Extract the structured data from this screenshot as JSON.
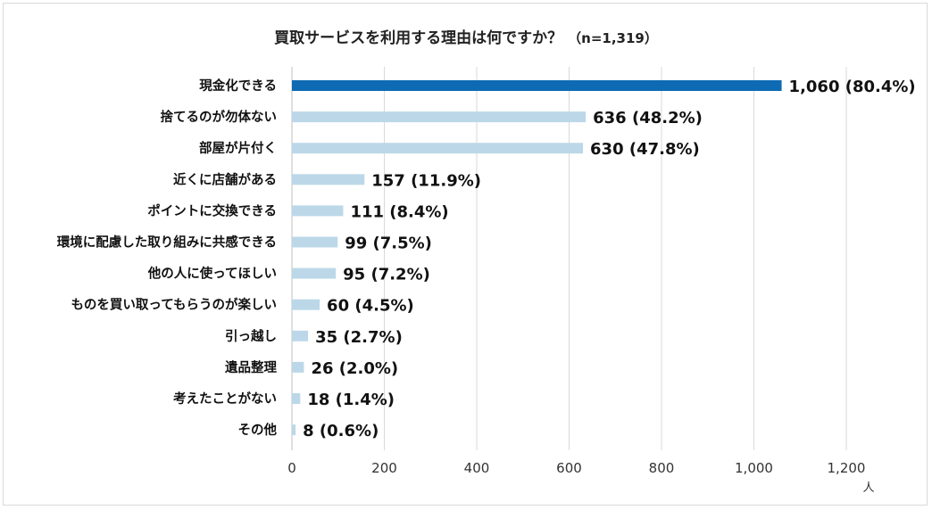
{
  "chart_data": {
    "type": "bar",
    "orientation": "horizontal",
    "title": "買取サービスを利用する理由は何ですか？",
    "subtitle": "（n=1,319）",
    "categories": [
      "現金化できる",
      "捨てるのが勿体ない",
      "部屋が片付く",
      "近くに店舗がある",
      "ポイントに交換できる",
      "環境に配慮した取り組みに共感できる",
      "他の人に使ってほしい",
      "ものを買い取ってもらうのが楽しい",
      "引っ越し",
      "遺品整理",
      "考えたことがない",
      "その他"
    ],
    "values": [
      1060,
      636,
      630,
      157,
      111,
      99,
      95,
      60,
      35,
      26,
      18,
      8
    ],
    "data_labels": [
      "1,060 (80.4%)",
      "636 (48.2%)",
      "630 (47.8%)",
      "157 (11.9%)",
      "111 (8.4%)",
      "99 (7.5%)",
      "95 (7.2%)",
      "60 (4.5%)",
      "35 (2.7%)",
      "26 (2.0%)",
      "18 (1.4%)",
      "8 (0.6%)"
    ],
    "xlim": [
      0,
      1200
    ],
    "xticks": [
      0,
      200,
      400,
      600,
      800,
      1000,
      1200
    ],
    "xtick_labels": [
      "0",
      "200",
      "400",
      "600",
      "800",
      "1,000",
      "1,200"
    ],
    "x_unit": "人",
    "grid": "vertical",
    "highlight_index": 0,
    "colors": {
      "highlight": "#0e6bb3",
      "bar": "#bcd8e8",
      "grid": "#d9d9d9"
    }
  }
}
